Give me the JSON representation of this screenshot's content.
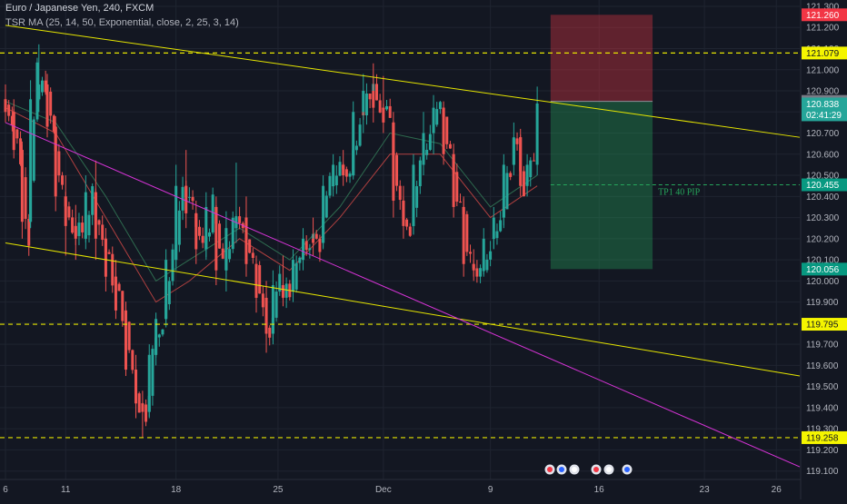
{
  "header": {
    "title": "Euro / Japanese Yen, 240, FXCM",
    "indicator": "TSR MA (25, 14, 50, Exponential, close, 2, 25, 3, 14)"
  },
  "colors": {
    "background": "#131722",
    "grid": "#1f2430",
    "bull": "#26a69a",
    "bear": "#ef5350",
    "trendline_yellow": "#e6e600",
    "trendline_magenta": "#d633d6",
    "stop_zone": "rgba(242,54,69,0.35)",
    "target_zone": "rgba(38,166,91,0.35)"
  },
  "chart_data": {
    "type": "candlestick",
    "symbol": "Euro / Japanese Yen",
    "timeframe": "240",
    "source": "FXCM",
    "ylim": [
      119.06,
      121.33
    ],
    "y_ticks": [
      "121.300",
      "121.200",
      "121.100",
      "121.000",
      "120.900",
      "120.800",
      "120.700",
      "120.600",
      "120.500",
      "120.400",
      "120.300",
      "120.200",
      "120.100",
      "120.000",
      "119.900",
      "119.800",
      "119.700",
      "119.600",
      "119.500",
      "119.400",
      "119.300",
      "119.200",
      "119.100"
    ],
    "x_ticks": [
      {
        "label": "6",
        "bar": 0
      },
      {
        "label": "11",
        "bar": 36
      },
      {
        "label": "18",
        "bar": 102
      },
      {
        "label": "25",
        "bar": 163
      },
      {
        "label": "Dec",
        "bar": 226
      },
      {
        "label": "9",
        "bar": 290
      },
      {
        "label": "16",
        "bar": 355
      },
      {
        "label": "23",
        "bar": 418
      },
      {
        "label": "26",
        "bar": 461
      }
    ],
    "n_bars": 475,
    "price_labels": [
      {
        "value": 121.26,
        "text": "121.260",
        "bg": "#f23645",
        "fg": "#ffffff"
      },
      {
        "value": 121.079,
        "text": "121.079",
        "bg": "#f5f500",
        "fg": "#131722"
      },
      {
        "value": 120.85,
        "text": "120.850",
        "bg": "#787b86",
        "fg": "#ffffff"
      },
      {
        "value": 120.838,
        "text": "120.838",
        "bg": "#26a69a",
        "fg": "#ffffff",
        "sub": "02:41:29"
      },
      {
        "value": 120.455,
        "text": "120.455",
        "bg": "#089981",
        "fg": "#ffffff"
      },
      {
        "value": 120.056,
        "text": "120.056",
        "bg": "#089981",
        "fg": "#ffffff"
      },
      {
        "value": 119.795,
        "text": "119.795",
        "bg": "#f5f500",
        "fg": "#131722"
      },
      {
        "value": 119.258,
        "text": "119.258",
        "bg": "#f5f500",
        "fg": "#131722"
      }
    ],
    "horizontal_levels": [
      121.079,
      119.795,
      119.258
    ],
    "trendlines": [
      {
        "color": "yellow",
        "from": {
          "bar": 0,
          "price": 121.21
        },
        "to": {
          "bar": 475,
          "price": 120.68
        }
      },
      {
        "color": "yellow",
        "from": {
          "bar": 0,
          "price": 120.18
        },
        "to": {
          "bar": 475,
          "price": 119.55
        }
      },
      {
        "color": "magenta",
        "from": {
          "bar": 0,
          "price": 120.75
        },
        "to": {
          "bar": 475,
          "price": 119.12
        }
      }
    ],
    "position": {
      "bar_start": 326,
      "bar_end": 387,
      "entry": 120.85,
      "stop": 121.26,
      "target": 120.056,
      "target_line": 120.455,
      "annotation": "TP1 40 PIP"
    },
    "ohlc": [
      {
        "bar": 0,
        "o": 120.86,
        "h": 120.93,
        "l": 120.75,
        "c": 120.8
      },
      {
        "bar": 5,
        "o": 120.8,
        "h": 120.86,
        "l": 120.58,
        "c": 120.62
      },
      {
        "bar": 10,
        "o": 120.62,
        "h": 120.66,
        "l": 120.2,
        "c": 120.28
      },
      {
        "bar": 15,
        "o": 120.28,
        "h": 120.95,
        "l": 120.25,
        "c": 120.86
      },
      {
        "bar": 20,
        "o": 120.86,
        "h": 121.12,
        "l": 120.8,
        "c": 120.93
      },
      {
        "bar": 25,
        "o": 120.93,
        "h": 120.98,
        "l": 120.68,
        "c": 120.73
      },
      {
        "bar": 30,
        "o": 120.73,
        "h": 120.78,
        "l": 120.33,
        "c": 120.4
      },
      {
        "bar": 36,
        "o": 120.4,
        "h": 120.5,
        "l": 120.12,
        "c": 120.26
      },
      {
        "bar": 42,
        "o": 120.26,
        "h": 120.36,
        "l": 120.1,
        "c": 120.2
      },
      {
        "bar": 48,
        "o": 120.2,
        "h": 120.5,
        "l": 120.15,
        "c": 120.42
      },
      {
        "bar": 54,
        "o": 120.42,
        "h": 120.57,
        "l": 120.1,
        "c": 120.2
      },
      {
        "bar": 60,
        "o": 120.2,
        "h": 120.25,
        "l": 119.95,
        "c": 120.02
      },
      {
        "bar": 66,
        "o": 120.02,
        "h": 120.1,
        "l": 119.82,
        "c": 119.86
      },
      {
        "bar": 72,
        "o": 119.86,
        "h": 119.9,
        "l": 119.55,
        "c": 119.58
      },
      {
        "bar": 78,
        "o": 119.58,
        "h": 119.65,
        "l": 119.35,
        "c": 119.42
      },
      {
        "bar": 82,
        "o": 119.42,
        "h": 119.48,
        "l": 119.258,
        "c": 119.38
      },
      {
        "bar": 86,
        "o": 119.38,
        "h": 119.7,
        "l": 119.35,
        "c": 119.65
      },
      {
        "bar": 90,
        "o": 119.65,
        "h": 119.85,
        "l": 119.6,
        "c": 119.82
      },
      {
        "bar": 96,
        "o": 119.82,
        "h": 120.15,
        "l": 119.78,
        "c": 120.1
      },
      {
        "bar": 102,
        "o": 120.1,
        "h": 120.55,
        "l": 120.05,
        "c": 120.45
      },
      {
        "bar": 108,
        "o": 120.45,
        "h": 120.62,
        "l": 120.25,
        "c": 120.32
      },
      {
        "bar": 114,
        "o": 120.32,
        "h": 120.38,
        "l": 120.08,
        "c": 120.15
      },
      {
        "bar": 120,
        "o": 120.15,
        "h": 120.42,
        "l": 120.1,
        "c": 120.35
      },
      {
        "bar": 126,
        "o": 120.35,
        "h": 120.4,
        "l": 119.98,
        "c": 120.05
      },
      {
        "bar": 132,
        "o": 120.05,
        "h": 120.33,
        "l": 119.95,
        "c": 120.25
      },
      {
        "bar": 138,
        "o": 120.25,
        "h": 120.56,
        "l": 120.18,
        "c": 120.3
      },
      {
        "bar": 144,
        "o": 120.3,
        "h": 120.4,
        "l": 120.02,
        "c": 120.08
      },
      {
        "bar": 150,
        "o": 120.08,
        "h": 120.12,
        "l": 119.85,
        "c": 119.92
      },
      {
        "bar": 156,
        "o": 119.92,
        "h": 120.0,
        "l": 119.66,
        "c": 119.75
      },
      {
        "bar": 160,
        "o": 119.75,
        "h": 120.05,
        "l": 119.7,
        "c": 119.98
      },
      {
        "bar": 166,
        "o": 119.98,
        "h": 120.12,
        "l": 119.88,
        "c": 119.95
      },
      {
        "bar": 172,
        "o": 119.95,
        "h": 120.15,
        "l": 119.9,
        "c": 120.1
      },
      {
        "bar": 178,
        "o": 120.1,
        "h": 120.25,
        "l": 120.05,
        "c": 120.2
      },
      {
        "bar": 184,
        "o": 120.2,
        "h": 120.3,
        "l": 120.12,
        "c": 120.18
      },
      {
        "bar": 190,
        "o": 120.18,
        "h": 120.5,
        "l": 120.15,
        "c": 120.45
      },
      {
        "bar": 196,
        "o": 120.45,
        "h": 120.6,
        "l": 120.4,
        "c": 120.55
      },
      {
        "bar": 202,
        "o": 120.55,
        "h": 120.62,
        "l": 120.45,
        "c": 120.5
      },
      {
        "bar": 208,
        "o": 120.5,
        "h": 120.85,
        "l": 120.48,
        "c": 120.8
      },
      {
        "bar": 214,
        "o": 120.8,
        "h": 120.98,
        "l": 120.7,
        "c": 120.9
      },
      {
        "bar": 220,
        "o": 120.9,
        "h": 121.03,
        "l": 120.75,
        "c": 120.82
      },
      {
        "bar": 226,
        "o": 120.82,
        "h": 120.97,
        "l": 120.7,
        "c": 120.75
      },
      {
        "bar": 232,
        "o": 120.75,
        "h": 120.8,
        "l": 120.3,
        "c": 120.38
      },
      {
        "bar": 238,
        "o": 120.38,
        "h": 120.45,
        "l": 120.2,
        "c": 120.26
      },
      {
        "bar": 244,
        "o": 120.26,
        "h": 120.6,
        "l": 120.22,
        "c": 120.55
      },
      {
        "bar": 250,
        "o": 120.55,
        "h": 120.8,
        "l": 120.5,
        "c": 120.7
      },
      {
        "bar": 256,
        "o": 120.7,
        "h": 120.88,
        "l": 120.6,
        "c": 120.82
      },
      {
        "bar": 262,
        "o": 120.82,
        "h": 120.85,
        "l": 120.55,
        "c": 120.6
      },
      {
        "bar": 268,
        "o": 120.6,
        "h": 120.65,
        "l": 120.3,
        "c": 120.35
      },
      {
        "bar": 274,
        "o": 120.35,
        "h": 120.4,
        "l": 120.02,
        "c": 120.08
      },
      {
        "bar": 280,
        "o": 120.08,
        "h": 120.15,
        "l": 120.0,
        "c": 120.05
      },
      {
        "bar": 286,
        "o": 120.05,
        "h": 120.25,
        "l": 120.02,
        "c": 120.2
      },
      {
        "bar": 292,
        "o": 120.2,
        "h": 120.35,
        "l": 120.15,
        "c": 120.3
      },
      {
        "bar": 298,
        "o": 120.3,
        "h": 120.6,
        "l": 120.25,
        "c": 120.55
      },
      {
        "bar": 304,
        "o": 120.55,
        "h": 120.75,
        "l": 120.5,
        "c": 120.68
      },
      {
        "bar": 308,
        "o": 120.68,
        "h": 120.72,
        "l": 120.4,
        "c": 120.45
      },
      {
        "bar": 312,
        "o": 120.45,
        "h": 120.6,
        "l": 120.4,
        "c": 120.55
      },
      {
        "bar": 318,
        "o": 120.55,
        "h": 120.92,
        "l": 120.5,
        "c": 120.84
      }
    ],
    "ma_lines": [
      {
        "color": "#b04040",
        "points": [
          [
            0,
            120.82
          ],
          [
            30,
            120.7
          ],
          [
            60,
            120.3
          ],
          [
            90,
            119.9
          ],
          [
            110,
            120.0
          ],
          [
            140,
            120.2
          ],
          [
            170,
            120.05
          ],
          [
            200,
            120.3
          ],
          [
            230,
            120.6
          ],
          [
            260,
            120.6
          ],
          [
            290,
            120.3
          ],
          [
            318,
            120.45
          ]
        ]
      },
      {
        "color": "#2e6b4f",
        "points": [
          [
            0,
            120.85
          ],
          [
            30,
            120.75
          ],
          [
            60,
            120.4
          ],
          [
            90,
            120.0
          ],
          [
            110,
            120.1
          ],
          [
            140,
            120.25
          ],
          [
            170,
            120.1
          ],
          [
            200,
            120.35
          ],
          [
            230,
            120.7
          ],
          [
            260,
            120.65
          ],
          [
            290,
            120.35
          ],
          [
            318,
            120.5
          ]
        ]
      }
    ]
  }
}
